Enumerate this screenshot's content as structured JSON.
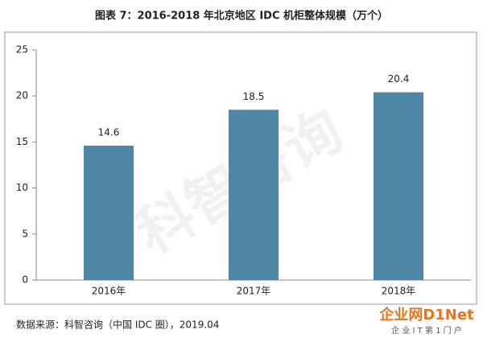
{
  "chart_data": {
    "type": "bar",
    "title": "图表 7：2016-2018 年北京地区 IDC 机柜整体规模（万个）",
    "categories": [
      "2016年",
      "2017年",
      "2018年"
    ],
    "values": [
      14.6,
      18.5,
      20.4
    ],
    "color": "#4e87a6",
    "ylim": [
      0,
      25
    ],
    "yticks": [
      0,
      5,
      10,
      15,
      20,
      25
    ],
    "grid": false,
    "source": "数据来源：科智咨询（中国 IDC 圈），2019.04",
    "watermark": "科智咨询",
    "brand": "企业网D1Net",
    "brand_tagline": "企 业 I T 第 1 门 户"
  }
}
